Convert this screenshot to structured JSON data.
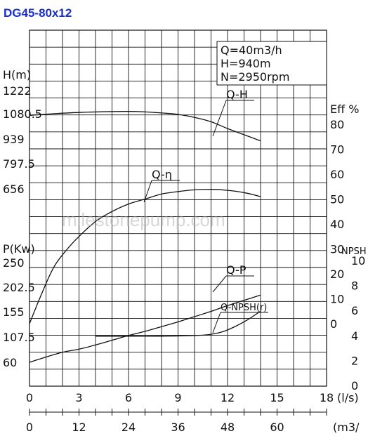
{
  "title": "DG45-80x12",
  "specs": [
    "Q=40m3/h",
    "H=940m",
    "N=2950rpm"
  ],
  "watermark": "milestonepump.com",
  "colors": {
    "title": "#1a2fd0",
    "ink": "#111111",
    "grid": "#111111"
  },
  "chart_data": {
    "type": "line",
    "axes": {
      "x_primary": {
        "ticks": [
          "0",
          "3",
          "6",
          "9",
          "12",
          "15",
          "18"
        ],
        "unit_label": "(l/s)",
        "range": [
          0,
          18
        ]
      },
      "x_secondary": {
        "ticks": [
          "0",
          "12",
          "24",
          "36",
          "48",
          "60"
        ],
        "unit_label": "(m3/"
      },
      "head": {
        "label": "H(m)",
        "ticks": [
          "1222",
          "1080.5",
          "939",
          "797.5",
          "656"
        ]
      },
      "power": {
        "label": "P(Kw)",
        "ticks": [
          "250",
          "202.5",
          "155",
          "107.5",
          "60"
        ]
      },
      "efficiency": {
        "label": "Eff %",
        "ticks": [
          "80",
          "70",
          "60",
          "50",
          "40",
          "30",
          "20",
          "10",
          "0"
        ]
      },
      "npsh": {
        "label": "NPSH",
        "ticks": [
          "10",
          "8",
          "6",
          "4",
          "2",
          "0"
        ]
      }
    },
    "series": [
      {
        "name": "Q-H",
        "axis": "head",
        "x": [
          0,
          1.5,
          3,
          4.5,
          6,
          7,
          8,
          9,
          10,
          11,
          12,
          13,
          14
        ],
        "y": [
          1080.5,
          1090,
          1097,
          1101,
          1103,
          1100,
          1094,
          1086,
          1069,
          1044,
          1005,
          970,
          935
        ]
      },
      {
        "name": "Q-η",
        "axis": "efficiency",
        "x": [
          0,
          0.8,
          1.5,
          2.3,
          3,
          4,
          5,
          6,
          7,
          8,
          9,
          10,
          11,
          12,
          13,
          14
        ],
        "y": [
          0,
          13,
          23,
          30,
          35,
          41,
          45,
          48,
          50,
          52,
          53,
          53.7,
          53.9,
          53.5,
          52.6,
          51
        ]
      },
      {
        "name": "Q-P",
        "axis": "power",
        "x": [
          0,
          1,
          2,
          3,
          4,
          5,
          6,
          7,
          8,
          9,
          10,
          11,
          12,
          13,
          14
        ],
        "y": [
          60,
          70,
          79,
          85,
          93,
          102,
          111,
          119,
          128,
          137,
          147,
          157,
          168,
          178,
          188
        ]
      },
      {
        "name": "Q-NPSH(r)",
        "axis": "npsh",
        "x": [
          4,
          6,
          8,
          10,
          11,
          11.8,
          12.5,
          13.2,
          14
        ],
        "y": [
          4,
          4,
          4,
          4.05,
          4.15,
          4.4,
          4.8,
          5.3,
          6
        ]
      }
    ]
  }
}
